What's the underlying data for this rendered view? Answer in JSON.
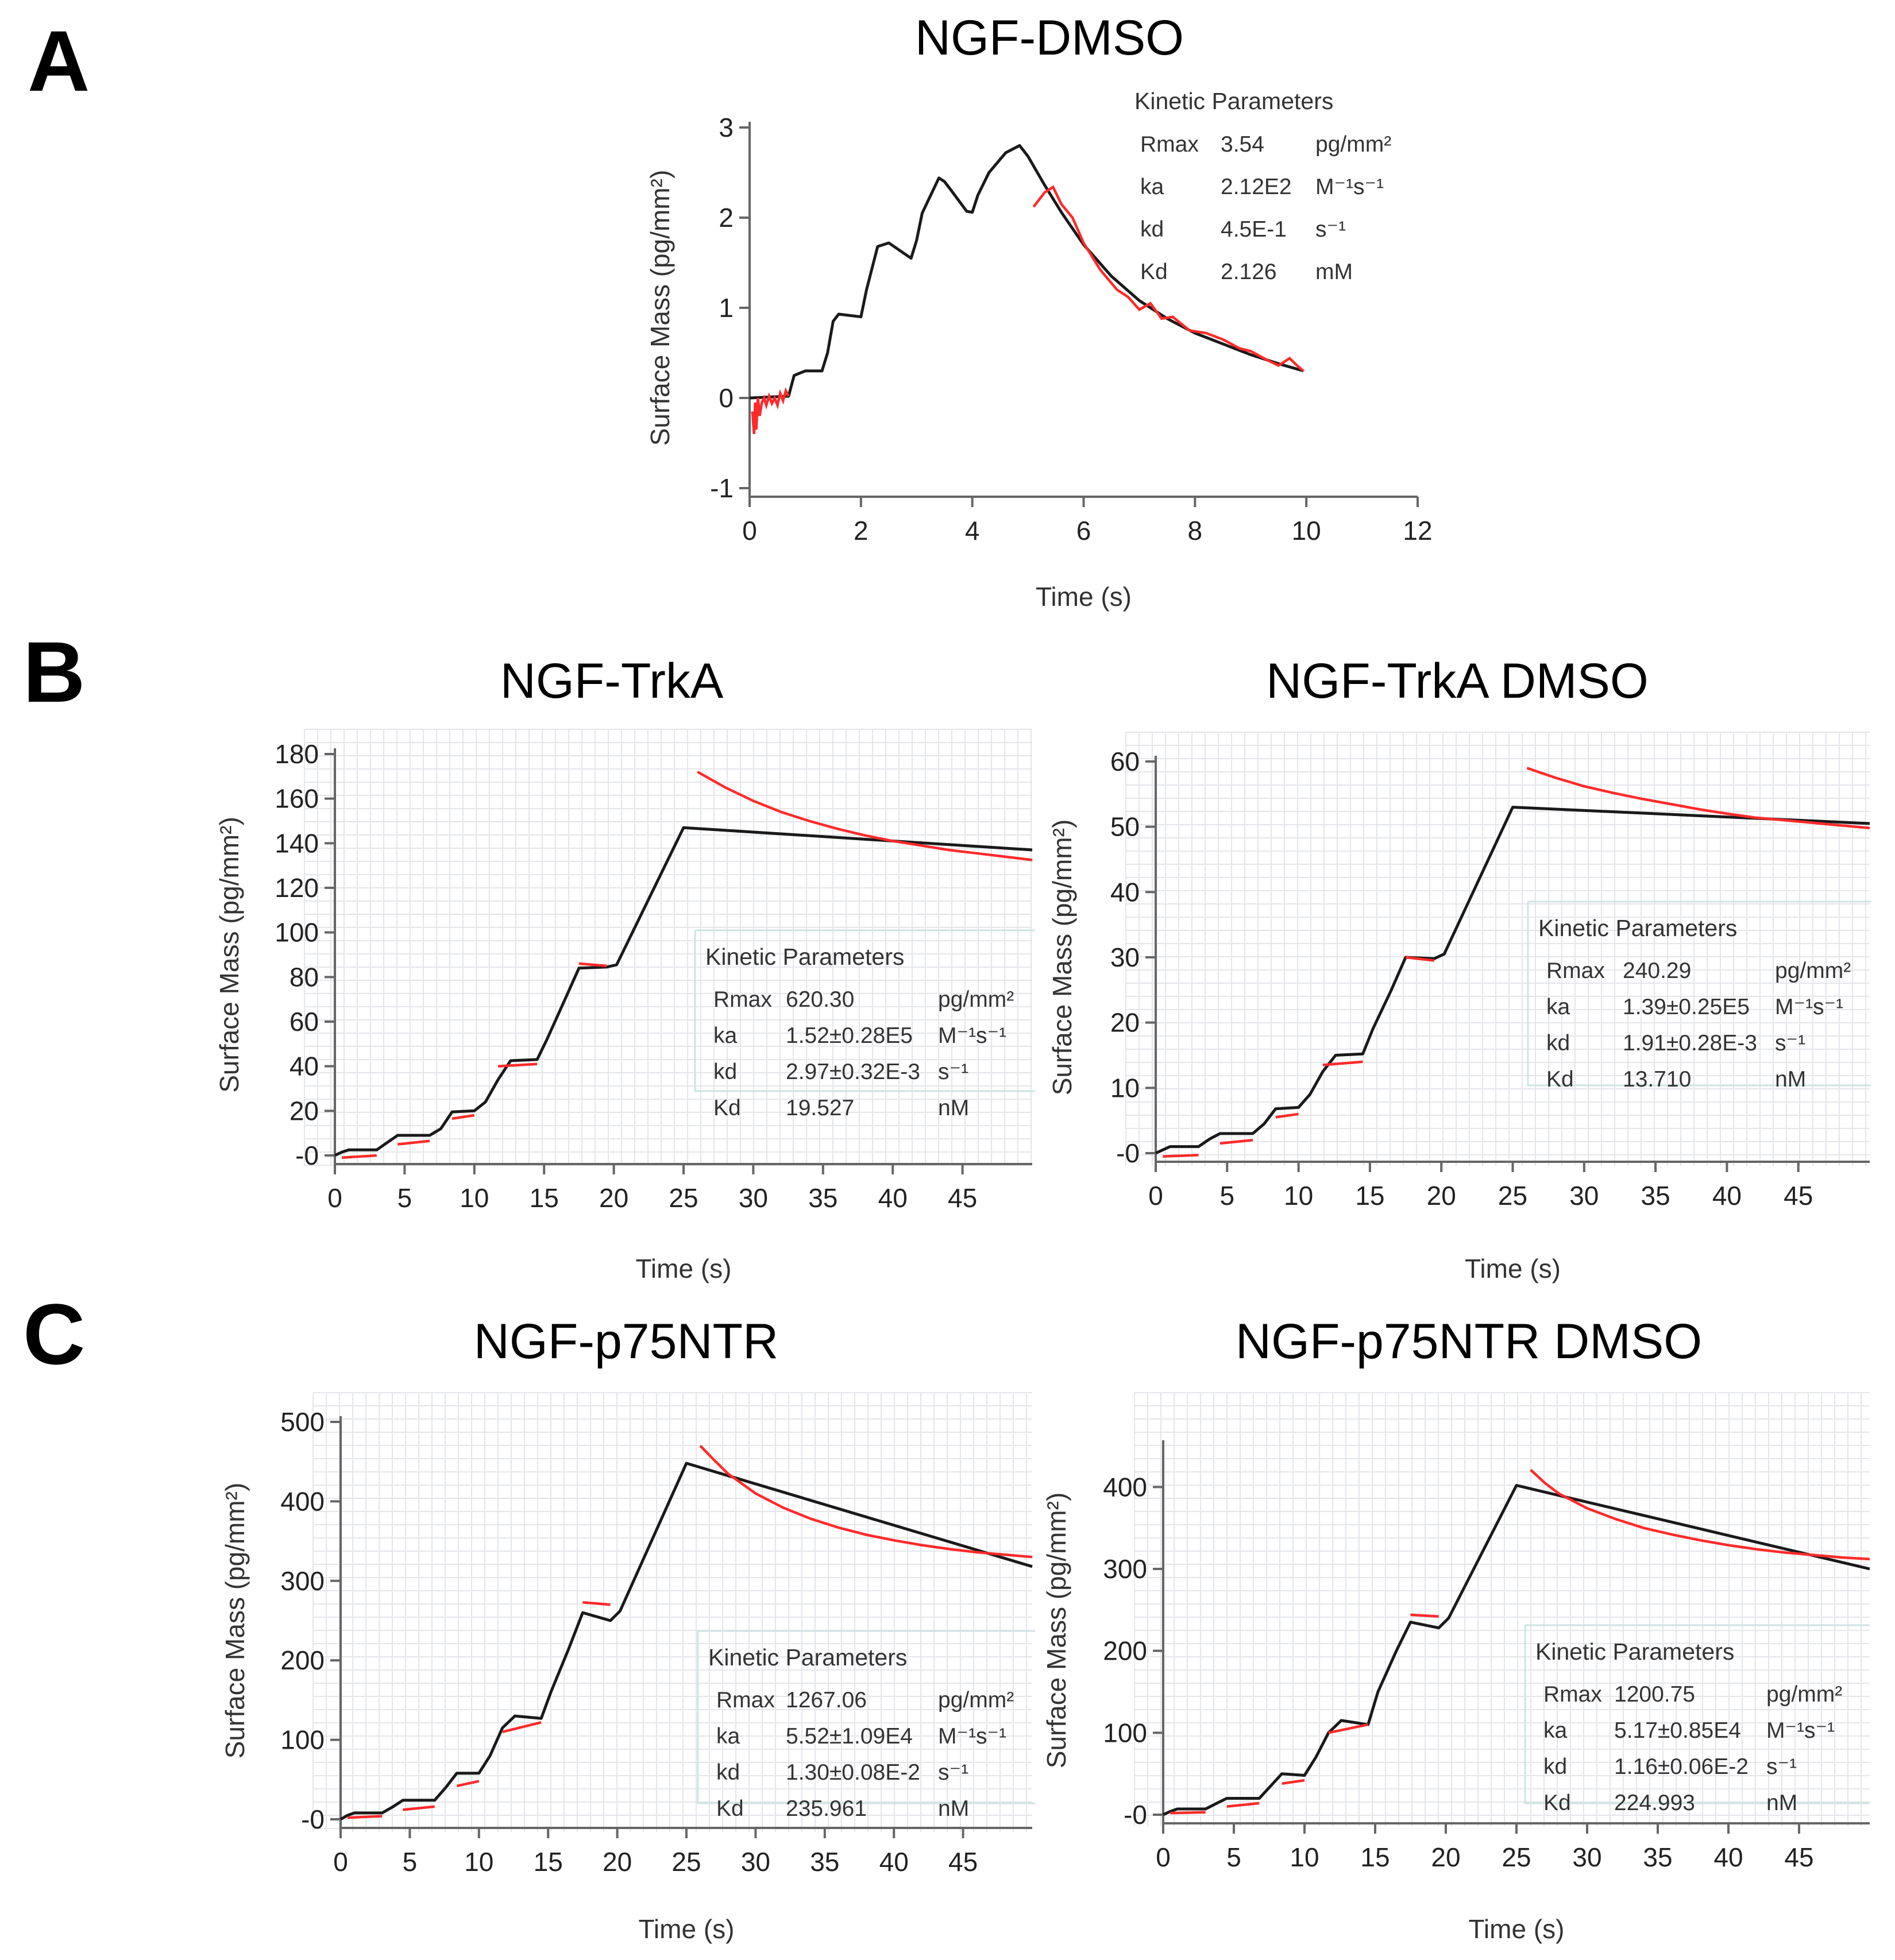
{
  "figure": {
    "panel_letters": [
      "A",
      "B",
      "C"
    ],
    "colors": {
      "fit_line": "#1a1a1a",
      "measured": "#ff2a2a",
      "grid": "#e4e6ea",
      "axis": "#666666"
    }
  },
  "chart_data": [
    {
      "id": "A",
      "type": "line",
      "title": "NGF-DMSO",
      "xlabel": "Time (s)",
      "ylabel": "Surface Mass (pg/mm²)",
      "xlim": [
        0,
        12
      ],
      "ylim": [
        -1,
        3
      ],
      "xticks": [
        0,
        2,
        4,
        6,
        8,
        10,
        12
      ],
      "yticks": [
        -1,
        0,
        1,
        2,
        3
      ],
      "ytick_labels": [
        "-1",
        "0",
        "1",
        "2",
        "3"
      ],
      "grid": false,
      "legend_position": "top-right",
      "kinetic_parameters": {
        "title": "Kinetic Parameters",
        "rows": [
          {
            "name": "Rmax",
            "value": "3.54",
            "unit": "pg/mm²"
          },
          {
            "name": "ka",
            "value": "2.12E2",
            "unit": "M⁻¹s⁻¹"
          },
          {
            "name": "kd",
            "value": "4.5E-1",
            "unit": "s⁻¹"
          },
          {
            "name": "Kd",
            "value": "2.126",
            "unit": "mM"
          }
        ]
      },
      "series": [
        {
          "name": "fit",
          "style": "fit",
          "x": [
            0,
            0.7,
            0.8,
            1.0,
            1.3,
            1.4,
            1.5,
            1.6,
            2.0,
            2.1,
            2.3,
            2.5,
            2.9,
            3.0,
            3.1,
            3.4,
            3.5,
            3.6,
            3.9,
            4.0,
            4.1,
            4.3,
            4.6,
            4.85,
            5.0,
            5.3,
            5.6,
            6.0,
            6.5,
            7.0,
            7.5,
            8.0,
            8.5,
            9.0,
            9.5,
            9.95
          ],
          "y": [
            0.0,
            0.02,
            0.25,
            0.3,
            0.3,
            0.5,
            0.85,
            0.93,
            0.9,
            1.2,
            1.68,
            1.72,
            1.55,
            1.75,
            2.05,
            2.44,
            2.4,
            2.32,
            2.07,
            2.06,
            2.25,
            2.5,
            2.72,
            2.8,
            2.68,
            2.36,
            2.06,
            1.7,
            1.35,
            1.08,
            0.88,
            0.72,
            0.6,
            0.48,
            0.38,
            0.3
          ]
        },
        {
          "name": "measured-association",
          "style": "data",
          "x": [
            0.05,
            0.08,
            0.1,
            0.12,
            0.15,
            0.18,
            0.22,
            0.26,
            0.3,
            0.35,
            0.4,
            0.45,
            0.5,
            0.55,
            0.6,
            0.65,
            0.7
          ],
          "y": [
            -0.15,
            -0.4,
            -0.05,
            -0.35,
            0.0,
            -0.2,
            -0.05,
            0.0,
            -0.08,
            0.02,
            -0.06,
            0.0,
            -0.08,
            0.05,
            -0.03,
            0.08,
            0.02
          ]
        },
        {
          "name": "measured-dissociation",
          "style": "data",
          "x": [
            5.1,
            5.3,
            5.45,
            5.6,
            5.8,
            6.0,
            6.3,
            6.6,
            6.8,
            7.0,
            7.2,
            7.4,
            7.6,
            7.9,
            8.2,
            8.5,
            8.8,
            9.0,
            9.3,
            9.5,
            9.7,
            9.85,
            9.95
          ],
          "y": [
            2.12,
            2.28,
            2.34,
            2.15,
            2.0,
            1.72,
            1.42,
            1.2,
            1.12,
            0.98,
            1.05,
            0.88,
            0.9,
            0.75,
            0.72,
            0.65,
            0.55,
            0.52,
            0.42,
            0.36,
            0.44,
            0.35,
            0.3
          ]
        }
      ]
    },
    {
      "id": "B1",
      "type": "line",
      "title": "NGF-TrkA",
      "xlabel": "Time (s)",
      "ylabel": "Surface Mass (pg/mm²)",
      "xlim": [
        0,
        50
      ],
      "ylim": [
        0,
        180
      ],
      "xticks": [
        0,
        5,
        10,
        15,
        20,
        25,
        30,
        35,
        40,
        45
      ],
      "yticks": [
        0,
        20,
        40,
        60,
        80,
        100,
        120,
        140,
        160,
        180
      ],
      "ytick_labels": [
        "-0",
        "20",
        "40",
        "60",
        "80",
        "100",
        "120",
        "140",
        "160",
        "180"
      ],
      "grid": true,
      "legend_position": "bottom-right",
      "kinetic_parameters": {
        "title": "Kinetic Parameters",
        "rows": [
          {
            "name": "Rmax",
            "value": "620.30",
            "unit": "pg/mm²"
          },
          {
            "name": "ka",
            "value": "1.52±0.28E5",
            "unit": "M⁻¹s⁻¹"
          },
          {
            "name": "kd",
            "value": "2.97±0.32E-3",
            "unit": "s⁻¹"
          },
          {
            "name": "Kd",
            "value": "19.527",
            "unit": "nM"
          }
        ]
      },
      "series": [
        {
          "name": "fit",
          "style": "fit",
          "x": [
            0,
            0.5,
            1,
            3,
            3.8,
            4.5,
            6.8,
            7.6,
            8.4,
            10,
            10.8,
            11.7,
            12.6,
            14.5,
            15.2,
            16.5,
            17.5,
            19.5,
            20.2,
            25,
            50
          ],
          "y": [
            0,
            1.5,
            2.5,
            2.5,
            6,
            9,
            9,
            12,
            19.5,
            20,
            24,
            34,
            42.5,
            43,
            52,
            70,
            84,
            84.5,
            85.5,
            147,
            137
          ]
        },
        {
          "name": "measured-dissociation",
          "style": "data",
          "x": [
            26,
            28,
            30,
            32,
            34,
            36,
            38,
            40,
            42,
            44,
            46,
            48,
            50
          ],
          "y": [
            172,
            165,
            159,
            154,
            150,
            146.5,
            143.5,
            141,
            139,
            137,
            135.5,
            134,
            132.5
          ]
        },
        {
          "name": "measured-step-1",
          "style": "data",
          "x": [
            0.5,
            3
          ],
          "y": [
            -1,
            0
          ]
        },
        {
          "name": "measured-step-2",
          "style": "data",
          "x": [
            4.5,
            6.8
          ],
          "y": [
            5,
            6.5
          ]
        },
        {
          "name": "measured-step-3",
          "style": "data",
          "x": [
            8.4,
            10
          ],
          "y": [
            16.5,
            18
          ]
        },
        {
          "name": "measured-step-4",
          "style": "data",
          "x": [
            11.7,
            14.5
          ],
          "y": [
            40,
            41
          ]
        },
        {
          "name": "measured-step-5",
          "style": "data",
          "x": [
            17.5,
            19.5
          ],
          "y": [
            86,
            85
          ]
        }
      ]
    },
    {
      "id": "B2",
      "type": "line",
      "title": "NGF-TrkA DMSO",
      "xlabel": "Time (s)",
      "ylabel": "Surface Mass (pg/mm²)",
      "xlim": [
        0,
        50
      ],
      "ylim": [
        0,
        60
      ],
      "xticks": [
        0,
        5,
        10,
        15,
        20,
        25,
        30,
        35,
        40,
        45
      ],
      "yticks": [
        0,
        10,
        20,
        30,
        40,
        50,
        60
      ],
      "ytick_labels": [
        "-0",
        "10",
        "20",
        "30",
        "40",
        "50",
        "60"
      ],
      "grid": true,
      "legend_position": "bottom-right",
      "kinetic_parameters": {
        "title": "Kinetic Parameters",
        "rows": [
          {
            "name": "Rmax",
            "value": "240.29",
            "unit": "pg/mm²"
          },
          {
            "name": "ka",
            "value": "1.39±0.25E5",
            "unit": "M⁻¹s⁻¹"
          },
          {
            "name": "kd",
            "value": "1.91±0.28E-3",
            "unit": "s⁻¹"
          },
          {
            "name": "Kd",
            "value": "13.710",
            "unit": "nM"
          }
        ]
      },
      "series": [
        {
          "name": "fit",
          "style": "fit",
          "x": [
            0,
            0.5,
            1,
            3,
            3.8,
            4.5,
            6.8,
            7.6,
            8.4,
            10,
            10.8,
            11.7,
            12.6,
            14.5,
            15.2,
            16.5,
            17.5,
            19.5,
            20.2,
            25,
            50
          ],
          "y": [
            0,
            0.5,
            1,
            1,
            2.2,
            3,
            3,
            4.5,
            6.8,
            7,
            9,
            12.5,
            15,
            15.2,
            19,
            25,
            30,
            29.8,
            30.5,
            53,
            50.5
          ]
        },
        {
          "name": "measured-dissociation",
          "style": "data",
          "x": [
            26,
            28,
            30,
            32,
            34,
            36,
            38,
            40,
            42,
            44,
            46,
            48,
            50
          ],
          "y": [
            59,
            57.5,
            56.2,
            55.2,
            54.3,
            53.5,
            52.7,
            52,
            51.4,
            51,
            50.6,
            50.2,
            49.8
          ]
        },
        {
          "name": "measured-step-1",
          "style": "data",
          "x": [
            0.5,
            3
          ],
          "y": [
            -0.5,
            -0.3
          ]
        },
        {
          "name": "measured-step-2",
          "style": "data",
          "x": [
            4.5,
            6.8
          ],
          "y": [
            1.5,
            2
          ]
        },
        {
          "name": "measured-step-3",
          "style": "data",
          "x": [
            8.4,
            10
          ],
          "y": [
            5.5,
            6
          ]
        },
        {
          "name": "measured-step-4",
          "style": "data",
          "x": [
            11.7,
            14.5
          ],
          "y": [
            13.5,
            14
          ]
        },
        {
          "name": "measured-step-5",
          "style": "data",
          "x": [
            17.5,
            19.5
          ],
          "y": [
            30,
            29.5
          ]
        }
      ]
    },
    {
      "id": "C1",
      "type": "line",
      "title": "NGF-p75NTR",
      "xlabel": "Time (s)",
      "ylabel": "Surface Mass (pg/mm²)",
      "xlim": [
        0,
        50
      ],
      "ylim": [
        0,
        500
      ],
      "xticks": [
        0,
        5,
        10,
        15,
        20,
        25,
        30,
        35,
        40,
        45
      ],
      "yticks": [
        0,
        100,
        200,
        300,
        400,
        500
      ],
      "ytick_labels": [
        "-0",
        "100",
        "200",
        "300",
        "400",
        "500"
      ],
      "grid": true,
      "legend_position": "bottom-right",
      "kinetic_parameters": {
        "title": "Kinetic Parameters",
        "rows": [
          {
            "name": "Rmax",
            "value": "1267.06",
            "unit": "pg/mm²"
          },
          {
            "name": "ka",
            "value": "5.52±1.09E4",
            "unit": "M⁻¹s⁻¹"
          },
          {
            "name": "kd",
            "value": "1.30±0.08E-2",
            "unit": "s⁻¹"
          },
          {
            "name": "Kd",
            "value": "235.961",
            "unit": "nM"
          }
        ]
      },
      "series": [
        {
          "name": "fit",
          "style": "fit",
          "x": [
            0,
            0.5,
            1,
            3,
            3.8,
            4.5,
            6.8,
            7.6,
            8.4,
            10,
            10.8,
            11.7,
            12.6,
            14.5,
            15.2,
            16.5,
            17.5,
            19.5,
            20.2,
            25,
            50
          ],
          "y": [
            0,
            5,
            8,
            8,
            16,
            24,
            24,
            40,
            58,
            58,
            80,
            115,
            130,
            127,
            160,
            215,
            260,
            250,
            262,
            448,
            318
          ]
        },
        {
          "name": "measured-dissociation",
          "style": "data",
          "x": [
            26,
            27,
            28,
            30,
            32,
            34,
            36,
            38,
            40,
            42,
            44,
            46,
            48,
            50
          ],
          "y": [
            470,
            452,
            435,
            410,
            392,
            378,
            367,
            358,
            351,
            345,
            340,
            336,
            333,
            330
          ]
        },
        {
          "name": "measured-step-1",
          "style": "data",
          "x": [
            0.5,
            3
          ],
          "y": [
            2,
            4
          ]
        },
        {
          "name": "measured-step-2",
          "style": "data",
          "x": [
            4.5,
            6.8
          ],
          "y": [
            12,
            16
          ]
        },
        {
          "name": "measured-step-3",
          "style": "data",
          "x": [
            8.4,
            10
          ],
          "y": [
            42,
            48
          ]
        },
        {
          "name": "measured-step-4",
          "style": "data",
          "x": [
            11.7,
            14.5
          ],
          "y": [
            110,
            122
          ]
        },
        {
          "name": "measured-step-5",
          "style": "data",
          "x": [
            17.5,
            19.5
          ],
          "y": [
            273,
            270
          ]
        }
      ]
    },
    {
      "id": "C2",
      "type": "line",
      "title": "NGF-p75NTR DMSO",
      "xlabel": "Time (s)",
      "ylabel": "Surface Mass (pg/mm²)",
      "xlim": [
        0,
        50
      ],
      "ylim": [
        0,
        450
      ],
      "xticks": [
        0,
        5,
        10,
        15,
        20,
        25,
        30,
        35,
        40,
        45
      ],
      "yticks": [
        0,
        100,
        200,
        300,
        400
      ],
      "ytick_labels": [
        "-0",
        "100",
        "200",
        "300",
        "400"
      ],
      "grid": true,
      "legend_position": "bottom-right",
      "kinetic_parameters": {
        "title": "Kinetic Parameters",
        "rows": [
          {
            "name": "Rmax",
            "value": "1200.75",
            "unit": "pg/mm²"
          },
          {
            "name": "ka",
            "value": "5.17±0.85E4",
            "unit": "M⁻¹s⁻¹"
          },
          {
            "name": "kd",
            "value": "1.16±0.06E-2",
            "unit": "s⁻¹"
          },
          {
            "name": "Kd",
            "value": "224.993",
            "unit": "nM"
          }
        ]
      },
      "series": [
        {
          "name": "fit",
          "style": "fit",
          "x": [
            0,
            0.5,
            1,
            3,
            3.8,
            4.5,
            6.8,
            7.6,
            8.4,
            10,
            10.8,
            11.7,
            12.6,
            14.5,
            15.2,
            16.5,
            17.5,
            19.5,
            20.2,
            25,
            50
          ],
          "y": [
            0,
            4,
            7,
            7,
            14,
            20,
            20,
            35,
            50,
            48,
            70,
            100,
            115,
            110,
            150,
            200,
            235,
            228,
            240,
            402,
            300
          ]
        },
        {
          "name": "measured-dissociation",
          "style": "data",
          "x": [
            26,
            27,
            28,
            30,
            32,
            34,
            36,
            38,
            40,
            42,
            44,
            46,
            48,
            50
          ],
          "y": [
            421,
            405,
            392,
            374,
            361,
            350,
            342,
            335,
            329,
            324,
            320,
            317,
            314,
            312
          ]
        },
        {
          "name": "measured-step-1",
          "style": "data",
          "x": [
            0.5,
            3
          ],
          "y": [
            2,
            3
          ]
        },
        {
          "name": "measured-step-2",
          "style": "data",
          "x": [
            4.5,
            6.8
          ],
          "y": [
            10,
            14
          ]
        },
        {
          "name": "measured-step-3",
          "style": "data",
          "x": [
            8.4,
            10
          ],
          "y": [
            38,
            42
          ]
        },
        {
          "name": "measured-step-4",
          "style": "data",
          "x": [
            11.7,
            14.5
          ],
          "y": [
            100,
            110
          ]
        },
        {
          "name": "measured-step-5",
          "style": "data",
          "x": [
            17.5,
            19.5
          ],
          "y": [
            244,
            242
          ]
        }
      ]
    }
  ]
}
